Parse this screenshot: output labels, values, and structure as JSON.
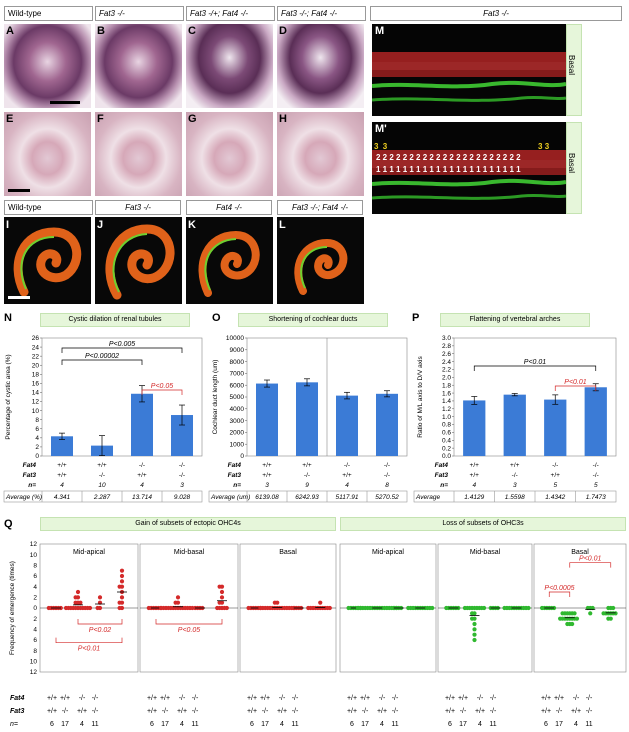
{
  "top_headers": [
    "Wild-type",
    "Fat3 -/-",
    "Fat3 -/+; Fat4 -/-",
    "Fat3 -/-; Fat4 -/-",
    "Fat3 -/-"
  ],
  "mid_headers": [
    "Wild-type",
    "Fat3 -/-",
    "Fat4 -/-",
    "Fat3 -/-; Fat4 -/-"
  ],
  "panel_letters": {
    "A": "A",
    "B": "B",
    "C": "C",
    "D": "D",
    "E": "E",
    "F": "F",
    "G": "G",
    "H": "H",
    "I": "I",
    "J": "J",
    "K": "K",
    "L": "L",
    "M": "M",
    "M2": "M'",
    "N": "N",
    "O": "O",
    "P": "P",
    "Q": "Q"
  },
  "basal_label": "Basal",
  "cell_row_numbers": {
    "row3": "3",
    "row2": "2",
    "row1": "1"
  },
  "colors": {
    "red": "#d42a2a",
    "green": "#2fb82f",
    "bar": "#3b7bd6",
    "boxgreen": "#e6f6da"
  },
  "chart_data": [
    {
      "type": "bar",
      "title": "Cystic dilation of renal tubules",
      "ylabel": "Percentage of cystic area (%)",
      "ylim": [
        0,
        26
      ],
      "yticks": [
        "0",
        "2",
        "4",
        "6",
        "8",
        "10",
        "12",
        "14",
        "16",
        "18",
        "20",
        "22",
        "24",
        "26"
      ],
      "categories": [
        "+/+;+/+",
        "+/+;-/-",
        "-/-;+/+",
        "-/-;-/-"
      ],
      "values": [
        4.341,
        2.287,
        13.714,
        9.028
      ],
      "errors": [
        0.7,
        2.2,
        1.8,
        2.2
      ],
      "annotations": [
        "P<0.005",
        "P<0.00002",
        "P<0.05"
      ],
      "table": {
        "Fat4": [
          "+/+",
          "+/+",
          "-/-",
          "-/-"
        ],
        "Fat3": [
          "+/+",
          "-/-",
          "+/+",
          "-/-"
        ],
        "n": [
          "4",
          "10",
          "4",
          "3"
        ],
        "avg_label": "Average (%)",
        "average": [
          "4.341",
          "2.287",
          "13.714",
          "9.028"
        ]
      }
    },
    {
      "type": "bar",
      "title": "Shortening of cochlear ducts",
      "ylabel": "Cochlear duct length (um)",
      "ylim": [
        0,
        10000
      ],
      "yticks": [
        "0",
        "1000",
        "2000",
        "3000",
        "4000",
        "5000",
        "6000",
        "7000",
        "8000",
        "9000",
        "10000"
      ],
      "categories": [
        "+/+;+/+",
        "+/+;-/-",
        "-/-;+/+",
        "-/-;-/-"
      ],
      "values": [
        6139.08,
        6242.93,
        5117.91,
        5270.52
      ],
      "errors": [
        300,
        300,
        280,
        260
      ],
      "table": {
        "Fat4": [
          "+/+",
          "+/+",
          "-/-",
          "-/-"
        ],
        "Fat3": [
          "+/+",
          "-/-",
          "+/+",
          "-/-"
        ],
        "n": [
          "3",
          "9",
          "4",
          "8"
        ],
        "avg_label": "Average (um)",
        "average": [
          "6139.08",
          "6242.93",
          "5117.91",
          "5270.52"
        ]
      }
    },
    {
      "type": "bar",
      "title": "Flattening of vertebral arches",
      "ylabel": "Ratio of M/L axis to D/V axis",
      "ylim": [
        0,
        3.0
      ],
      "yticks": [
        "0.0",
        "0.2",
        "0.4",
        "0.6",
        "0.8",
        "1.0",
        "1.2",
        "1.4",
        "1.6",
        "1.8",
        "2.0",
        "2.2",
        "2.4",
        "2.6",
        "2.8",
        "3.0"
      ],
      "categories": [
        "+/+;+/+",
        "+/+;-/-",
        "-/-;+/+",
        "-/-;-/-"
      ],
      "values": [
        1.4129,
        1.5598,
        1.4342,
        1.7473
      ],
      "errors": [
        0.1,
        0.03,
        0.12,
        0.09
      ],
      "annotations": [
        "P<0.01",
        "P<0.01"
      ],
      "table": {
        "Fat4": [
          "+/+",
          "+/+",
          "-/-",
          "-/-"
        ],
        "Fat3": [
          "+/+",
          "-/-",
          "+/+",
          "-/-"
        ],
        "n": [
          "4",
          "3",
          "5",
          "5"
        ],
        "avg_label": "Average",
        "average": [
          "1.4129",
          "1.5598",
          "1.4342",
          "1.7473"
        ]
      }
    },
    {
      "type": "scatter",
      "group_titles": [
        "Gain of subsets of ectopic OHC4s",
        "Loss of subsets of OHC3s"
      ],
      "ylabel": "Frequency of emergence (times)",
      "ylim": [
        -12,
        12
      ],
      "yticks": [
        "12",
        "10",
        "8",
        "6",
        "4",
        "2",
        "0",
        "2",
        "4",
        "6",
        "8",
        "10",
        "12"
      ],
      "subpanels": [
        "Mid-apical",
        "Mid-basal",
        "Basal",
        "Mid-apical",
        "Mid-basal",
        "Basal"
      ],
      "annotations": [
        "P<0.02",
        "P<0.01",
        "P<0.05",
        "P<0.0005",
        "P<0.01"
      ],
      "series": [
        {
          "subpanel": 0,
          "color": "red",
          "groups": [
            [
              0,
              0,
              0,
              0,
              0,
              0
            ],
            [
              0,
              0,
              0,
              0,
              0,
              0,
              0,
              1,
              1,
              1,
              2,
              2,
              3,
              0,
              0,
              0,
              0
            ],
            [
              0,
              1,
              0,
              2
            ],
            [
              0,
              0,
              1,
              2,
              3,
              4,
              4,
              5,
              6,
              7,
              1
            ]
          ]
        },
        {
          "subpanel": 1,
          "color": "red",
          "groups": [
            [
              0,
              0,
              0,
              0,
              0,
              0
            ],
            [
              0,
              0,
              0,
              0,
              0,
              0,
              0,
              0,
              0,
              0,
              1,
              1,
              2,
              0,
              0,
              0,
              0
            ],
            [
              0,
              0,
              0,
              0
            ],
            [
              0,
              0,
              1,
              1,
              2,
              3,
              4,
              4,
              0,
              0,
              0
            ]
          ]
        },
        {
          "subpanel": 2,
          "color": "red",
          "groups": [
            [
              0,
              0,
              0,
              0,
              0,
              0
            ],
            [
              0,
              0,
              0,
              0,
              0,
              0,
              0,
              0,
              0,
              0,
              0,
              0,
              0,
              0,
              1,
              1,
              0
            ],
            [
              0,
              0,
              0,
              0
            ],
            [
              0,
              0,
              0,
              0,
              0,
              0,
              1,
              0,
              0,
              0,
              0
            ]
          ]
        },
        {
          "subpanel": 3,
          "color": "green",
          "groups": [
            [
              0,
              0,
              0,
              0,
              0,
              0
            ],
            [
              0,
              0,
              0,
              0,
              0,
              0,
              0,
              0,
              0,
              0,
              0,
              0,
              0,
              0,
              0,
              0,
              0
            ],
            [
              0,
              0,
              0,
              0
            ],
            [
              0,
              0,
              0,
              0,
              0,
              0,
              0,
              0,
              0,
              0,
              0
            ]
          ]
        },
        {
          "subpanel": 4,
          "color": "green",
          "groups": [
            [
              0,
              0,
              0,
              0,
              0,
              0
            ],
            [
              0,
              0,
              0,
              -1,
              -1,
              -2,
              -2,
              -3,
              -4,
              -5,
              -6,
              0,
              0,
              0,
              0,
              0,
              0
            ],
            [
              0,
              0,
              0,
              0
            ],
            [
              0,
              0,
              0,
              0,
              0,
              0,
              0,
              0,
              0,
              0,
              0
            ]
          ]
        },
        {
          "subpanel": 5,
          "color": "green",
          "groups": [
            [
              0,
              0,
              0,
              0,
              0,
              0
            ],
            [
              -1,
              -1,
              -1,
              -2,
              -2,
              -2,
              -2,
              -3,
              -3,
              -1,
              -2,
              -2,
              -1,
              -1,
              -2,
              -3,
              -2
            ],
            [
              0,
              -1,
              0,
              0
            ],
            [
              0,
              -1,
              -1,
              -2,
              -2,
              -1,
              0,
              -1,
              0,
              -1,
              -1
            ]
          ]
        }
      ],
      "table": {
        "Fat4": [
          "+/+",
          "+/+",
          "-/-",
          "-/-"
        ],
        "Fat3": [
          "+/+",
          "-/-",
          "+/+",
          "-/-"
        ],
        "n": [
          "6",
          "17",
          "4",
          "11"
        ]
      }
    }
  ],
  "row_labels": {
    "fat4": "Fat4",
    "fat3": "Fat3",
    "n": "n="
  }
}
